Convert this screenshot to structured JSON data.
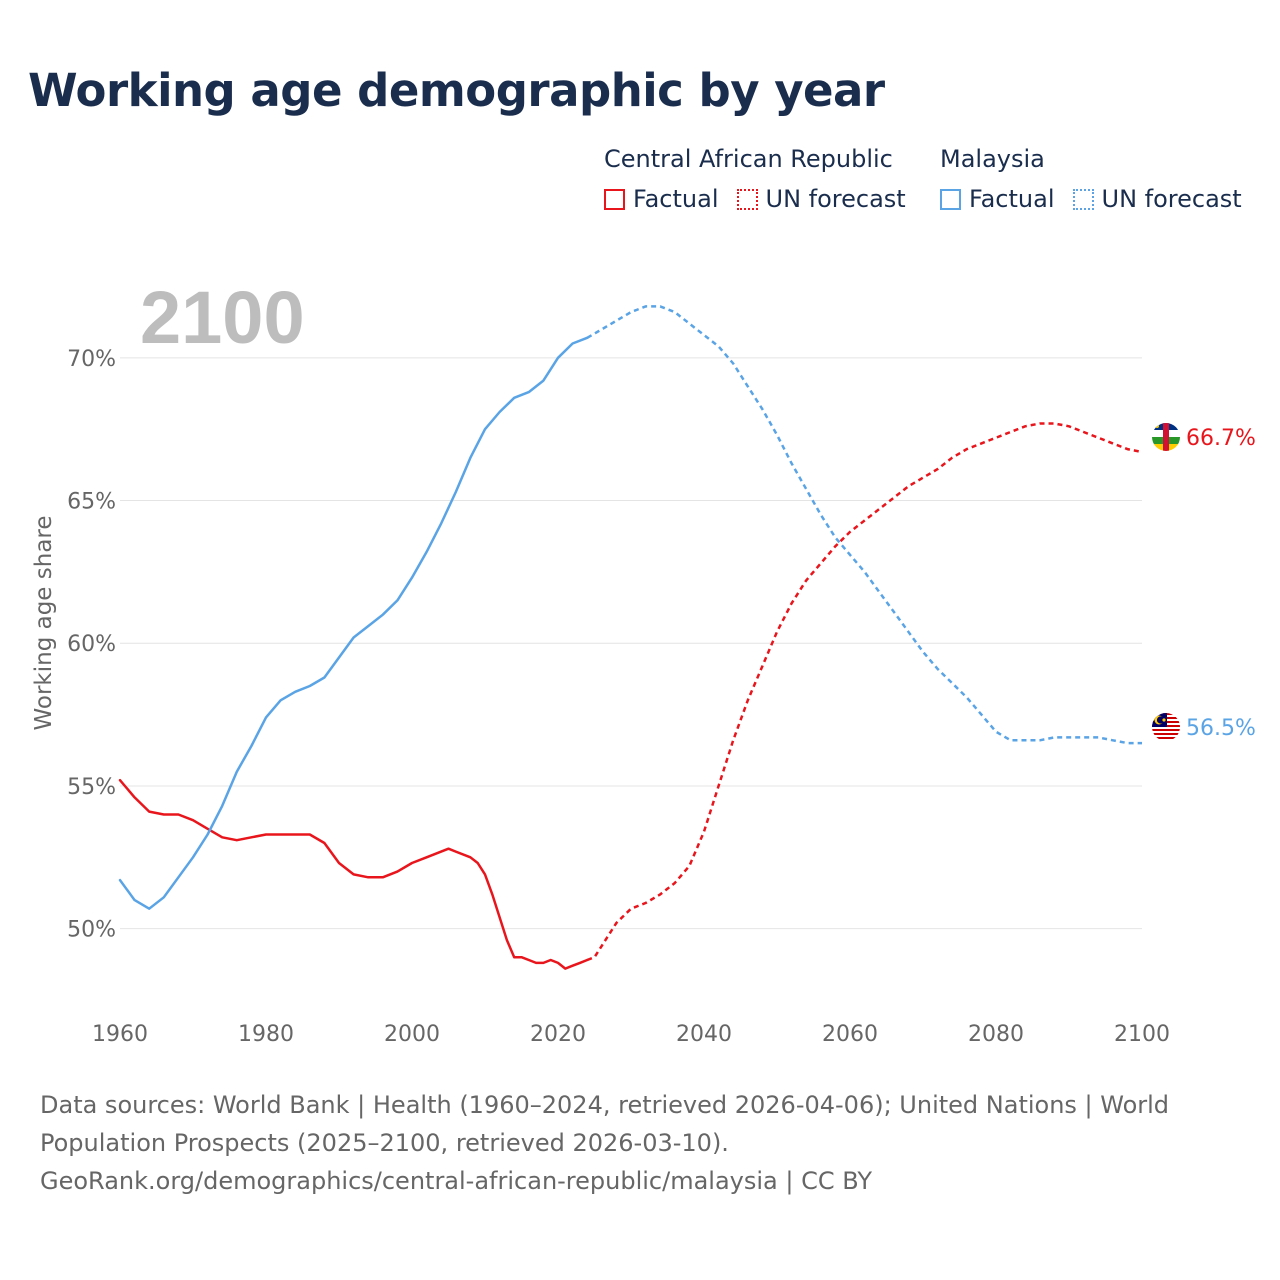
{
  "title": "Working age demographic by year",
  "legend": {
    "groups": [
      {
        "name": "Central African Republic",
        "color": "#e8161c",
        "factual": "Factual",
        "forecast": "UN forecast"
      },
      {
        "name": "Malaysia",
        "color": "#5aa4e6",
        "factual": "Factual",
        "forecast": "UN forecast"
      }
    ]
  },
  "footer": {
    "sources": "Data sources: World Bank | Health (1960–2024, retrieved 2026-04-06); United Nations | World Population Prospects (2025–2100, retrieved 2026-03-10).",
    "link": "GeoRank.org/demographics/central-african-republic/malaysia | CC BY"
  },
  "chart_data": {
    "type": "line",
    "title": "Working age demographic by year",
    "year_label": "2100",
    "xlabel": "",
    "ylabel": "Working age share",
    "xlim": [
      1960,
      2100
    ],
    "ylim": [
      47.5,
      71.5
    ],
    "x_ticks": [
      1960,
      1980,
      2000,
      2020,
      2040,
      2060,
      2080,
      2100
    ],
    "x_tick_labels": [
      "1960",
      "1980",
      "2000",
      "2020",
      "2040",
      "2060",
      "2080",
      "2100"
    ],
    "y_ticks": [
      50,
      55,
      60,
      65,
      70
    ],
    "y_tick_labels": [
      "50%",
      "55%",
      "60%",
      "65%",
      "70%"
    ],
    "forecast_start": 2024,
    "series": [
      {
        "name": "Central African Republic",
        "color": "#e8161c",
        "end_label": "66.7%",
        "flag": "central-african-republic-flag-icon",
        "factual": {
          "x": [
            1960,
            1962,
            1964,
            1966,
            1968,
            1970,
            1972,
            1974,
            1976,
            1978,
            1980,
            1982,
            1984,
            1986,
            1988,
            1990,
            1992,
            1994,
            1996,
            1998,
            2000,
            2002,
            2004,
            2005,
            2006,
            2008,
            2009,
            2010,
            2011,
            2012,
            2013,
            2014,
            2015,
            2016,
            2017,
            2018,
            2019,
            2020,
            2021,
            2022,
            2023,
            2024
          ],
          "y": [
            55.2,
            54.6,
            54.1,
            54.0,
            54.0,
            53.8,
            53.5,
            53.2,
            53.1,
            53.2,
            53.3,
            53.3,
            53.3,
            53.3,
            53.0,
            52.3,
            51.9,
            51.8,
            51.8,
            52.0,
            52.3,
            52.5,
            52.7,
            52.8,
            52.7,
            52.5,
            52.3,
            51.9,
            51.2,
            50.4,
            49.6,
            49.0,
            49.0,
            48.9,
            48.8,
            48.8,
            48.9,
            48.8,
            48.6,
            48.7,
            48.8,
            48.9
          ]
        },
        "forecast": {
          "x": [
            2024,
            2025,
            2026,
            2028,
            2030,
            2032,
            2034,
            2036,
            2038,
            2040,
            2042,
            2044,
            2046,
            2048,
            2050,
            2052,
            2054,
            2056,
            2058,
            2060,
            2062,
            2064,
            2066,
            2068,
            2070,
            2072,
            2074,
            2076,
            2078,
            2080,
            2082,
            2084,
            2086,
            2088,
            2090,
            2092,
            2094,
            2096,
            2098,
            2100
          ],
          "y": [
            48.9,
            49.0,
            49.4,
            50.2,
            50.7,
            50.9,
            51.2,
            51.6,
            52.2,
            53.4,
            55.0,
            56.6,
            58.0,
            59.2,
            60.4,
            61.4,
            62.2,
            62.8,
            63.4,
            63.9,
            64.3,
            64.7,
            65.1,
            65.5,
            65.8,
            66.1,
            66.5,
            66.8,
            67.0,
            67.2,
            67.4,
            67.6,
            67.7,
            67.7,
            67.6,
            67.4,
            67.2,
            67.0,
            66.8,
            66.7
          ]
        }
      },
      {
        "name": "Malaysia",
        "color": "#5aa4e6",
        "end_label": "56.5%",
        "flag": "malaysia-flag-icon",
        "factual": {
          "x": [
            1960,
            1962,
            1964,
            1966,
            1968,
            1970,
            1972,
            1974,
            1976,
            1978,
            1980,
            1982,
            1984,
            1986,
            1988,
            1990,
            1992,
            1994,
            1996,
            1998,
            2000,
            2002,
            2004,
            2006,
            2008,
            2010,
            2012,
            2014,
            2016,
            2018,
            2020,
            2022,
            2024
          ],
          "y": [
            51.7,
            51.0,
            50.7,
            51.1,
            51.8,
            52.5,
            53.3,
            54.3,
            55.5,
            56.4,
            57.4,
            58.0,
            58.3,
            58.5,
            58.8,
            59.5,
            60.2,
            60.6,
            61.0,
            61.5,
            62.3,
            63.2,
            64.2,
            65.3,
            66.5,
            67.5,
            68.1,
            68.6,
            68.8,
            69.2,
            70.0,
            70.5,
            70.7
          ]
        },
        "forecast": {
          "x": [
            2024,
            2026,
            2028,
            2030,
            2032,
            2034,
            2036,
            2038,
            2040,
            2042,
            2044,
            2046,
            2048,
            2050,
            2052,
            2054,
            2056,
            2058,
            2060,
            2062,
            2064,
            2066,
            2068,
            2070,
            2072,
            2074,
            2076,
            2078,
            2080,
            2082,
            2084,
            2086,
            2088,
            2090,
            2092,
            2094,
            2096,
            2098,
            2100
          ],
          "y": [
            70.7,
            71.0,
            71.3,
            71.6,
            71.8,
            71.8,
            71.6,
            71.2,
            70.8,
            70.4,
            69.8,
            69.0,
            68.2,
            67.3,
            66.3,
            65.4,
            64.5,
            63.7,
            63.1,
            62.5,
            61.8,
            61.1,
            60.4,
            59.7,
            59.1,
            58.6,
            58.1,
            57.5,
            56.9,
            56.6,
            56.6,
            56.6,
            56.7,
            56.7,
            56.7,
            56.7,
            56.6,
            56.5,
            56.5
          ]
        }
      }
    ]
  }
}
